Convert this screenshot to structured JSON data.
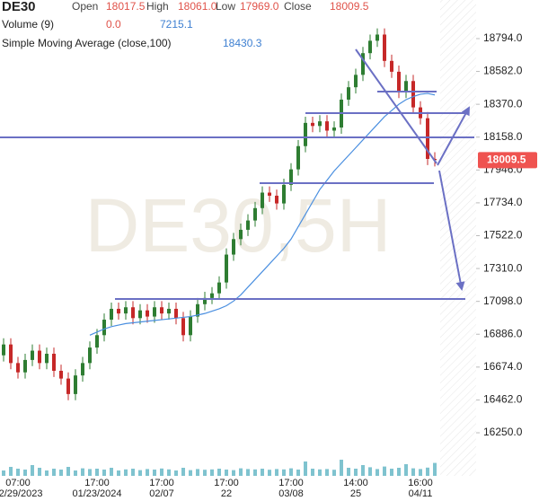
{
  "header": {
    "symbol": "DE30",
    "open_label": "Open",
    "open": "18017.5",
    "high_label": "High",
    "high": "18061.0",
    "low_label": "Low",
    "low": "17969.0",
    "close_label": "Close",
    "close": "18009.5",
    "volume_label": "Volume (9)",
    "volume_a": "0.0",
    "volume_b": "7215.1",
    "sma_label": "Simple Moving Average (close,100)",
    "sma_value": "18430.3",
    "watermark": "DE30,5H"
  },
  "chart_data": {
    "type": "candlestick",
    "categories": [
      null,
      null,
      "07:00\n12/29/2023",
      null,
      null,
      null,
      null,
      null,
      null,
      null,
      null,
      null,
      null,
      "17:00\n01/23/2024",
      null,
      null,
      null,
      null,
      null,
      null,
      null,
      null,
      "17:00\n02/07",
      null,
      null,
      null,
      null,
      null,
      null,
      null,
      null,
      "17:00\n22",
      null,
      null,
      null,
      null,
      null,
      null,
      null,
      null,
      "17:00\n03/08",
      null,
      null,
      null,
      null,
      null,
      null,
      null,
      null,
      "14:00\n25",
      null,
      null,
      null,
      null,
      null,
      null,
      null,
      null,
      "16:00\n04/11",
      null,
      null
    ],
    "open": [
      16750,
      16820,
      16700,
      16640,
      16720,
      16780,
      16700,
      16760,
      16650,
      16600,
      16500,
      16620,
      16700,
      16800,
      16880,
      16980,
      17050,
      17020,
      17060,
      16990,
      17040,
      17000,
      17060,
      17020,
      17050,
      16990,
      16880,
      17000,
      17080,
      17120,
      17150,
      17220,
      17400,
      17500,
      17560,
      17620,
      17700,
      17800,
      17780,
      17730,
      17850,
      17950,
      18100,
      18250,
      18230,
      18260,
      18200,
      18220,
      18400,
      18480,
      18560,
      18700,
      18780,
      18820,
      18650,
      18580,
      18450,
      18520,
      18350,
      18280,
      18017.5
    ],
    "high": [
      16860,
      16860,
      16740,
      16760,
      16820,
      16820,
      16800,
      16800,
      16690,
      16640,
      16660,
      16740,
      16840,
      16920,
      17020,
      17090,
      17090,
      17100,
      17100,
      17080,
      17080,
      17100,
      17100,
      17090,
      17090,
      17030,
      17040,
      17120,
      17160,
      17190,
      17260,
      17440,
      17540,
      17600,
      17660,
      17740,
      17840,
      17840,
      17820,
      17890,
      17990,
      18140,
      18290,
      18290,
      18300,
      18300,
      18260,
      18440,
      18520,
      18600,
      18740,
      18820,
      18860,
      18860,
      18690,
      18620,
      18560,
      18560,
      18390,
      18320,
      18061
    ],
    "low": [
      16710,
      16660,
      16600,
      16600,
      16680,
      16660,
      16660,
      16610,
      16560,
      16460,
      16460,
      16580,
      16660,
      16760,
      16840,
      16940,
      16980,
      16980,
      16950,
      16950,
      16960,
      16960,
      16980,
      16980,
      16950,
      16840,
      16840,
      16960,
      17040,
      17080,
      17110,
      17180,
      17360,
      17460,
      17520,
      17580,
      17660,
      17740,
      17690,
      17690,
      17810,
      17910,
      18060,
      18190,
      18190,
      18160,
      18160,
      18180,
      18360,
      18440,
      18520,
      18660,
      18740,
      18610,
      18540,
      18410,
      18410,
      18310,
      18240,
      17977.5,
      17969
    ],
    "close": [
      16820,
      16700,
      16640,
      16720,
      16780,
      16700,
      16760,
      16650,
      16600,
      16500,
      16620,
      16700,
      16800,
      16880,
      16980,
      17050,
      17020,
      17060,
      16990,
      17040,
      17000,
      17060,
      17020,
      17050,
      16990,
      16880,
      17000,
      17080,
      17120,
      17150,
      17220,
      17400,
      17500,
      17560,
      17620,
      17700,
      17800,
      17780,
      17730,
      17850,
      17950,
      18100,
      18250,
      18230,
      18260,
      18200,
      18220,
      18400,
      18480,
      18560,
      18700,
      18780,
      18820,
      18650,
      18580,
      18450,
      18520,
      18350,
      18280,
      18017.5,
      18009.5
    ],
    "volume": [
      3000,
      5000,
      4000,
      3500,
      6000,
      4500,
      3000,
      4000,
      3500,
      5000,
      3000,
      4200,
      3800,
      4000,
      3500,
      4500,
      3000,
      3600,
      4000,
      3200,
      3800,
      3500,
      4100,
      3600,
      3000,
      4500,
      3200,
      3800,
      3400,
      3600,
      4000,
      3500,
      3200,
      4200,
      3800,
      3600,
      4000,
      3400,
      3800,
      3600,
      4200,
      3500,
      8000,
      4000,
      3600,
      3800,
      3400,
      9000,
      4500,
      4000,
      6000,
      4800,
      3800,
      5200,
      4000,
      4500,
      6500,
      4200,
      3800,
      4600,
      7215.1
    ],
    "volume_lim": [
      0,
      25000
    ],
    "sma": {
      "name": "Simple Moving Average (close,100)",
      "color": "#4a8fe0",
      "values": [
        null,
        null,
        null,
        null,
        null,
        null,
        null,
        null,
        null,
        null,
        null,
        null,
        16880,
        16900,
        16920,
        16935,
        16945,
        16955,
        16960,
        16965,
        16970,
        16975,
        16980,
        16985,
        16990,
        16995,
        17000,
        17010,
        17020,
        17035,
        17050,
        17070,
        17100,
        17140,
        17190,
        17240,
        17290,
        17340,
        17390,
        17440,
        17500,
        17580,
        17660,
        17740,
        17820,
        17880,
        17940,
        17990,
        18040,
        18090,
        18140,
        18190,
        18240,
        18290,
        18330,
        18370,
        18400,
        18420,
        18435,
        18440,
        18430.3
      ]
    },
    "up_color": "#2e7d32",
    "down_color": "#c62828",
    "volume_color": "#7fc3cf",
    "ylim": [
      15972,
      19043
    ],
    "yticks": [
      {
        "value": 18794,
        "label": "18794.0"
      },
      {
        "value": 18582,
        "label": "18582.0"
      },
      {
        "value": 18370,
        "label": "18370.0"
      },
      {
        "value": 18158,
        "label": "18158.0"
      },
      {
        "value": 17946,
        "label": "17946.0"
      },
      {
        "value": 17734,
        "label": "17734.0"
      },
      {
        "value": 17522,
        "label": "17522.0"
      },
      {
        "value": 17310,
        "label": "17310.0"
      },
      {
        "value": 17098,
        "label": "17098.0"
      },
      {
        "value": 16886,
        "label": "16886.0"
      },
      {
        "value": 16674,
        "label": "16674.0"
      },
      {
        "value": 16462,
        "label": "16462.0"
      },
      {
        "value": 16250,
        "label": "16250.0"
      }
    ],
    "price_label_color": "#ef5350"
  }
}
